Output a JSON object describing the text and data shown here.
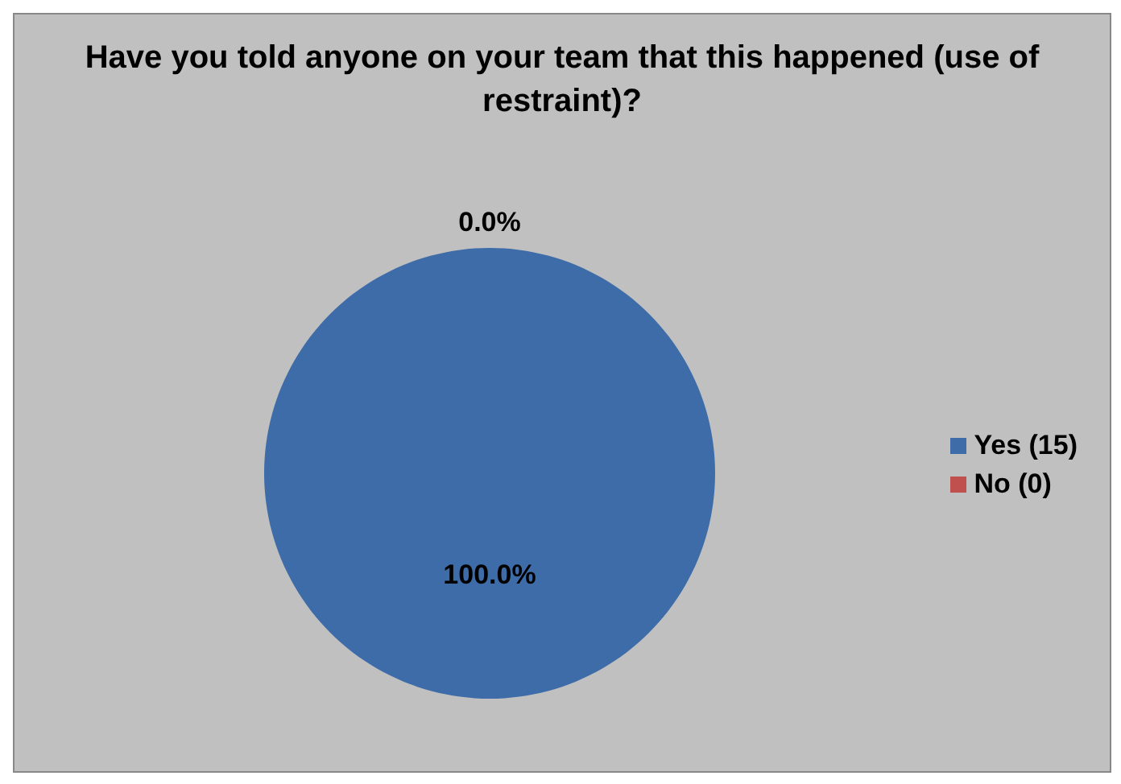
{
  "chart_data": {
    "type": "pie",
    "title": "Have you told anyone on your team that this happened (use of restraint)?",
    "categories": [
      "Yes (15)",
      "No (0)"
    ],
    "values": [
      100.0,
      0.0
    ],
    "value_labels": [
      "100.0%",
      "0.0%"
    ],
    "colors": [
      "#3e6ca8",
      "#c0504d"
    ],
    "legend": "right"
  }
}
